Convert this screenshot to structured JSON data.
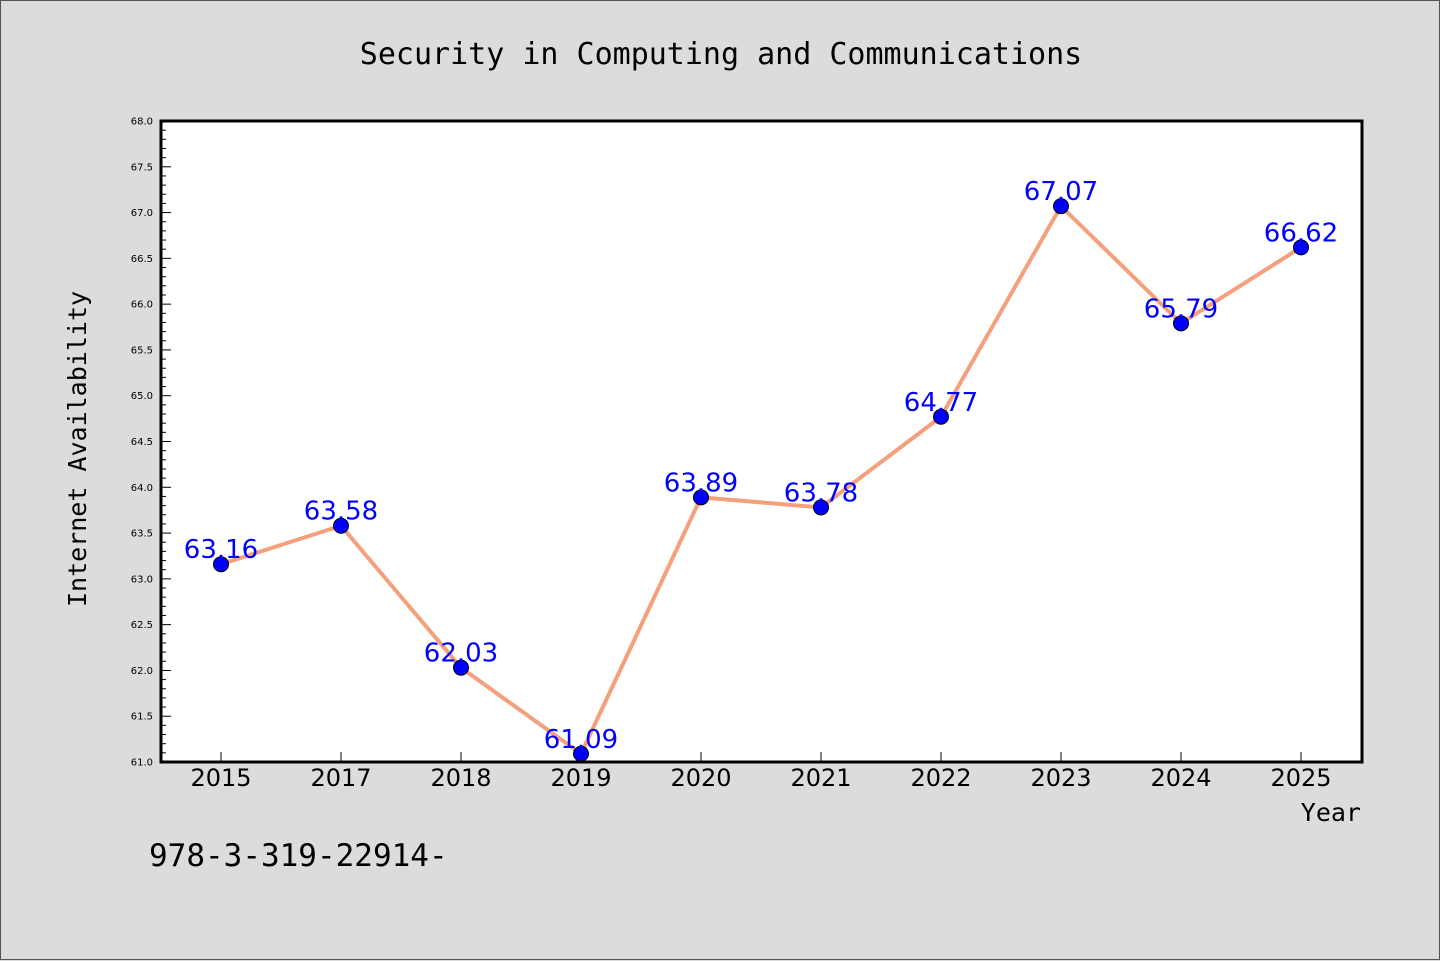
{
  "chart_data": {
    "type": "line",
    "title": "Security in Computing and Communications",
    "xlabel": "Year",
    "ylabel": "Internet Availability",
    "categories": [
      "2015",
      "2017",
      "2018",
      "2019",
      "2020",
      "2021",
      "2022",
      "2023",
      "2024",
      "2025"
    ],
    "series": [
      {
        "values": [
          63.16,
          63.58,
          62.03,
          61.09,
          63.89,
          63.78,
          64.77,
          67.07,
          65.79,
          66.62
        ],
        "line_color": "#f4a07c",
        "marker_color": "#0000ff"
      }
    ],
    "data_labels": [
      "63.16",
      "63.58",
      "62.03",
      "61.09",
      "63.89",
      "63.78",
      "64.77",
      "67.07",
      "65.79",
      "66.62"
    ],
    "ylim": [
      61.0,
      68.0
    ],
    "yticks": [
      "61.0",
      "61.5",
      "62.0",
      "62.5",
      "63.0",
      "63.5",
      "64.0",
      "64.5",
      "65.0",
      "65.5",
      "66.0",
      "66.5",
      "67.0",
      "67.5",
      "68.0"
    ],
    "grid": false,
    "legend": "none"
  },
  "footer": {
    "isbn": "978-3-319-22914-"
  },
  "colors": {
    "background": "#dcdcdc",
    "plot_background": "#ffffff",
    "line": "#f4a07c",
    "marker": "#0000ff",
    "data_label": "#0000ff"
  }
}
